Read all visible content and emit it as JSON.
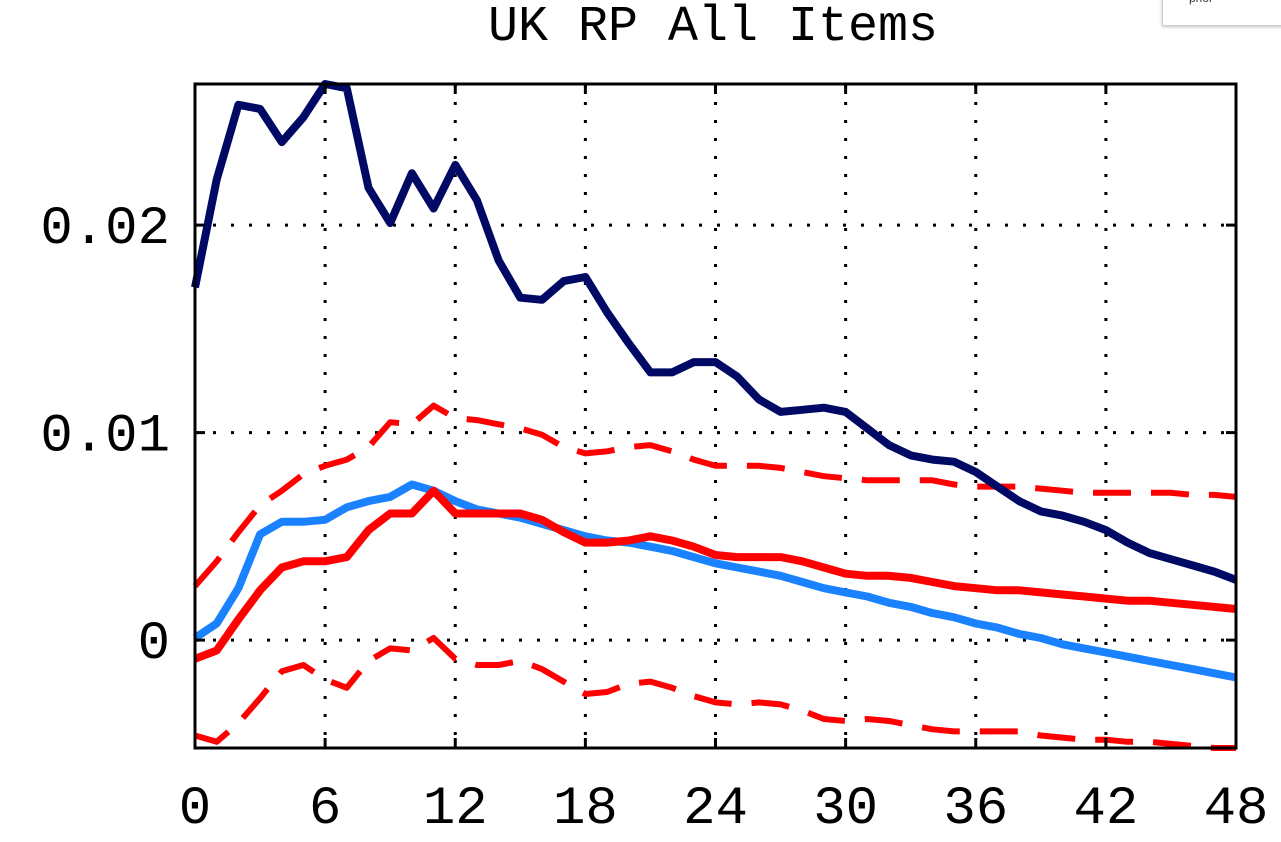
{
  "legend": {
    "label": "prior"
  },
  "chart_data": {
    "type": "line",
    "title": "UK RP All Items",
    "xlabel": "",
    "ylabel": "",
    "xlim": [
      0,
      48
    ],
    "ylim": [
      -0.0052,
      0.0268
    ],
    "xticks": [
      0,
      6,
      12,
      18,
      24,
      30,
      36,
      42,
      48
    ],
    "yticks": [
      0,
      0.01,
      0.02
    ],
    "ytick_labels": [
      "0",
      "0.01",
      "0.02"
    ],
    "grid": true,
    "colors": {
      "navy": "#000a64",
      "blue": "#1a82ff",
      "red": "#ff0000"
    },
    "x": [
      0,
      1,
      2,
      3,
      4,
      5,
      6,
      7,
      8,
      9,
      10,
      11,
      12,
      13,
      14,
      15,
      16,
      17,
      18,
      19,
      20,
      21,
      22,
      23,
      24,
      25,
      26,
      27,
      28,
      29,
      30,
      31,
      32,
      33,
      34,
      35,
      36,
      37,
      38,
      39,
      40,
      41,
      42,
      43,
      44,
      45,
      46,
      47,
      48
    ],
    "series": [
      {
        "key": "navy",
        "style": "solid",
        "values": [
          0.017,
          0.0222,
          0.0258,
          0.0256,
          0.024,
          0.0252,
          0.0268,
          0.0266,
          0.0218,
          0.0201,
          0.0225,
          0.0208,
          0.0229,
          0.0212,
          0.0183,
          0.0165,
          0.0164,
          0.0173,
          0.0175,
          0.0158,
          0.0143,
          0.0129,
          0.0129,
          0.0134,
          0.0134,
          0.0127,
          0.0116,
          0.011,
          0.0111,
          0.0112,
          0.011,
          0.0102,
          0.0094,
          0.0089,
          0.0087,
          0.0086,
          0.0081,
          0.0074,
          0.0067,
          0.0062,
          0.006,
          0.0057,
          0.0053,
          0.0047,
          0.0042,
          0.0039,
          0.0036,
          0.0033,
          0.0029
        ]
      },
      {
        "key": "blue",
        "style": "solid",
        "values": [
          0.0001,
          0.0008,
          0.0025,
          0.0051,
          0.0057,
          0.0057,
          0.0058,
          0.0064,
          0.0067,
          0.0069,
          0.0075,
          0.0072,
          0.0067,
          0.0063,
          0.0061,
          0.0059,
          0.0056,
          0.0053,
          0.005,
          0.0048,
          0.0047,
          0.0045,
          0.0043,
          0.004,
          0.0037,
          0.0035,
          0.0033,
          0.0031,
          0.0028,
          0.0025,
          0.0023,
          0.0021,
          0.0018,
          0.0016,
          0.0013,
          0.0011,
          0.0008,
          0.0006,
          0.0003,
          0.0001,
          -0.0002,
          -0.0004,
          -0.0006,
          -0.0008,
          -0.001,
          -0.0012,
          -0.0014,
          -0.0016,
          -0.0018
        ]
      },
      {
        "key": "red",
        "style": "solid",
        "values": [
          -0.0009,
          -0.0005,
          0.001,
          0.0024,
          0.0035,
          0.0038,
          0.0038,
          0.004,
          0.0053,
          0.0061,
          0.0061,
          0.0072,
          0.0061,
          0.0061,
          0.0061,
          0.0061,
          0.0058,
          0.0052,
          0.0047,
          0.0047,
          0.0048,
          0.005,
          0.0048,
          0.0045,
          0.0041,
          0.004,
          0.004,
          0.004,
          0.0038,
          0.0035,
          0.0032,
          0.0031,
          0.0031,
          0.003,
          0.0028,
          0.0026,
          0.0025,
          0.0024,
          0.0024,
          0.0023,
          0.0022,
          0.0021,
          0.002,
          0.0019,
          0.0019,
          0.0018,
          0.0017,
          0.0016,
          0.0015
        ]
      },
      {
        "key": "red",
        "style": "dashed",
        "values": [
          0.0026,
          0.0038,
          0.0052,
          0.0065,
          0.0072,
          0.008,
          0.0084,
          0.0087,
          0.0093,
          0.0105,
          0.0104,
          0.0113,
          0.0107,
          0.0106,
          0.0104,
          0.0102,
          0.0099,
          0.0093,
          0.009,
          0.0091,
          0.0093,
          0.0094,
          0.0091,
          0.0087,
          0.0084,
          0.0084,
          0.0084,
          0.0083,
          0.0081,
          0.0079,
          0.0078,
          0.0077,
          0.0077,
          0.0077,
          0.0077,
          0.0075,
          0.0074,
          0.0074,
          0.0074,
          0.0073,
          0.0072,
          0.0071,
          0.0071,
          0.0071,
          0.0071,
          0.0071,
          0.007,
          0.007,
          0.0069
        ]
      },
      {
        "key": "red",
        "style": "dashed",
        "values": [
          -0.0046,
          -0.0049,
          -0.004,
          -0.0028,
          -0.0015,
          -0.0012,
          -0.0019,
          -0.0023,
          -0.001,
          -0.0004,
          -0.0005,
          0.0001,
          -0.0009,
          -0.0012,
          -0.0012,
          -0.001,
          -0.0014,
          -0.002,
          -0.0026,
          -0.0025,
          -0.0021,
          -0.002,
          -0.0023,
          -0.0027,
          -0.003,
          -0.0031,
          -0.003,
          -0.0031,
          -0.0034,
          -0.0038,
          -0.0039,
          -0.0038,
          -0.0039,
          -0.0041,
          -0.0043,
          -0.0044,
          -0.0044,
          -0.0044,
          -0.0044,
          -0.0046,
          -0.0047,
          -0.0048,
          -0.0048,
          -0.0049,
          -0.0049,
          -0.005,
          -0.0051,
          -0.0052,
          -0.0052
        ]
      }
    ]
  }
}
